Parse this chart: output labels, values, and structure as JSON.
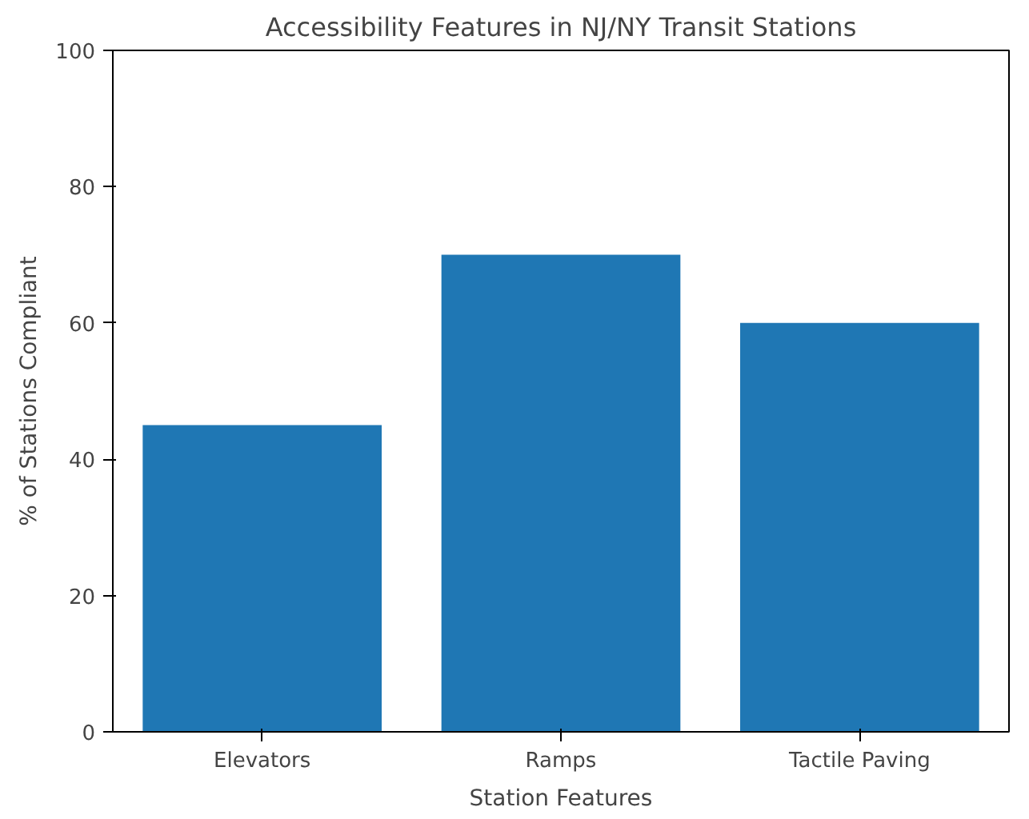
{
  "chart_data": {
    "type": "bar",
    "title": "Accessibility Features in NJ/NY Transit Stations",
    "xlabel": "Station Features",
    "ylabel": "% of Stations Compliant",
    "categories": [
      "Elevators",
      "Ramps",
      "Tactile Paving"
    ],
    "values": [
      45,
      70,
      60
    ],
    "color": "#1f77b4",
    "ylim": [
      0,
      100
    ],
    "yticks": [
      0,
      20,
      40,
      60,
      80,
      100
    ],
    "grid": false
  }
}
